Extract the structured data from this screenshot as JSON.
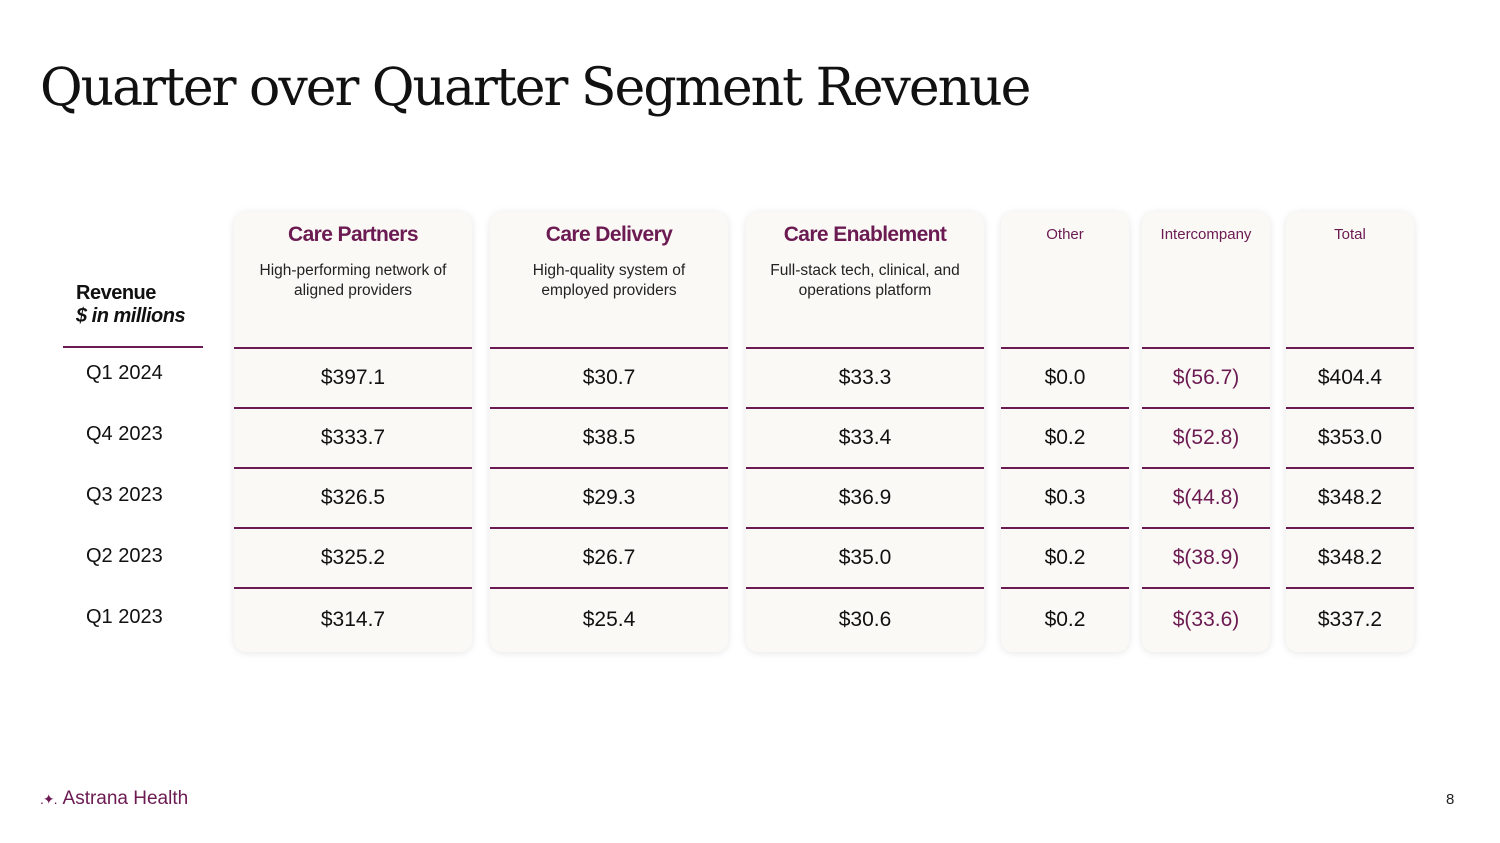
{
  "title": "Quarter over Quarter Segment Revenue",
  "row_header": {
    "line1": "Revenue",
    "line2": "$ in millions"
  },
  "quarters": [
    "Q1 2024",
    "Q4 2023",
    "Q3 2023",
    "Q2 2023",
    "Q1 2023"
  ],
  "columns": [
    {
      "title": "Care Partners",
      "description": "High-performing network of aligned providers",
      "values": [
        "$397.1",
        "$333.7",
        "$326.5",
        "$325.2",
        "$314.7"
      ]
    },
    {
      "title": "Care Delivery",
      "description": "High-quality system of employed providers",
      "values": [
        "$30.7",
        "$38.5",
        "$29.3",
        "$26.7",
        "$25.4"
      ]
    },
    {
      "title": "Care Enablement",
      "description": "Full-stack tech, clinical, and operations platform",
      "values": [
        "$33.3",
        "$33.4",
        "$36.9",
        "$35.0",
        "$30.6"
      ]
    },
    {
      "title": "Other",
      "description": "",
      "values": [
        "$0.0",
        "$0.2",
        "$0.3",
        "$0.2",
        "$0.2"
      ]
    },
    {
      "title": "Intercompany",
      "description": "",
      "values": [
        "$(56.7)",
        "$(52.8)",
        "$(44.8)",
        "$(38.9)",
        "$(33.6)"
      ]
    },
    {
      "title": "Total",
      "description": "",
      "values": [
        "$404.4",
        "$353.0",
        "$348.2",
        "$348.2",
        "$337.2"
      ]
    }
  ],
  "colors": {
    "accent": "#6b1a52",
    "card_bg": "#fbf9f5"
  },
  "footer": {
    "brand": "Astrana Health",
    "brand_icon": "sparkle-icon",
    "page_number": "8"
  }
}
